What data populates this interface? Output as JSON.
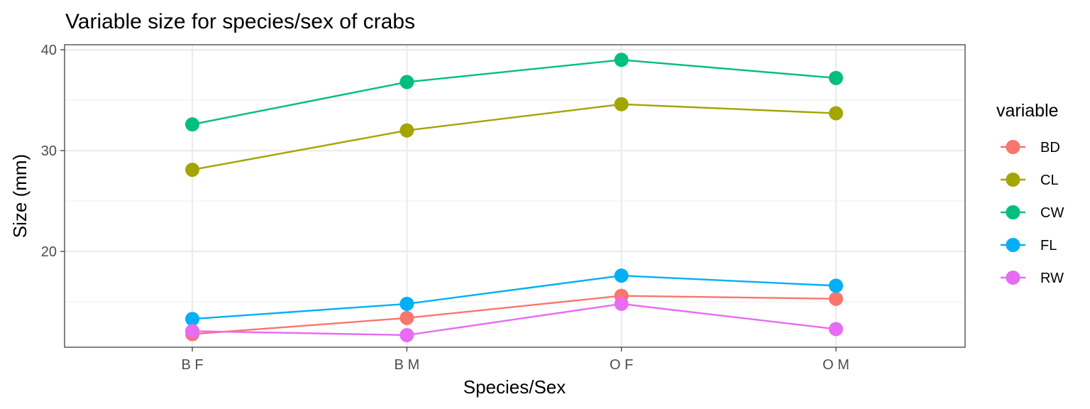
{
  "chart_data": {
    "type": "line",
    "title": "Variable size for species/sex of crabs",
    "xlabel": "Species/Sex",
    "ylabel": "Size (mm)",
    "categories": [
      "B F",
      "B M",
      "O F",
      "O M"
    ],
    "y_ticks": [
      20,
      30,
      40
    ],
    "ylim": [
      10.5,
      40.5
    ],
    "grid": true,
    "legend_title": "variable",
    "legend_position": "right",
    "series": [
      {
        "name": "BD",
        "color": "#F8766D",
        "values": [
          11.8,
          13.4,
          15.6,
          15.3
        ]
      },
      {
        "name": "CL",
        "color": "#A3A500",
        "values": [
          28.1,
          32.0,
          34.6,
          33.7
        ]
      },
      {
        "name": "CW",
        "color": "#00BF7D",
        "values": [
          32.6,
          36.8,
          39.0,
          37.2
        ]
      },
      {
        "name": "FL",
        "color": "#00B0F6",
        "values": [
          13.3,
          14.8,
          17.6,
          16.6
        ]
      },
      {
        "name": "RW",
        "color": "#E76BF3",
        "values": [
          12.1,
          11.7,
          14.8,
          12.3
        ]
      }
    ]
  }
}
